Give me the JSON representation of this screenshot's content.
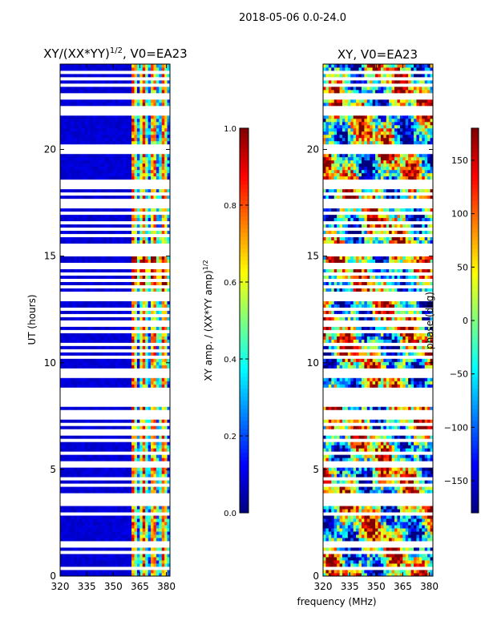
{
  "suptitle": "2018-05-06 0.0-24.0",
  "colors": {
    "jet": [
      "#00007f",
      "#0000ff",
      "#007fff",
      "#00ffff",
      "#7fff7f",
      "#ffff00",
      "#ff7f00",
      "#ff0000",
      "#7f0000"
    ],
    "gap": "#ffffff",
    "axis": "#000000"
  },
  "chart_data": [
    {
      "type": "heatmap",
      "title_main": "XY/(XX*YY)",
      "title_sup": "1/2",
      "title_rest": ", V0=EA23",
      "xlabel": "",
      "ylabel": "UT (hours)",
      "xlim": [
        320,
        382
      ],
      "ylim": [
        0,
        24
      ],
      "xticks": [
        320,
        335,
        350,
        365,
        380
      ],
      "yticks": [
        0,
        5,
        10,
        15,
        20
      ],
      "colorbar": {
        "label_main": "XY amp. / (XX*YY amp)",
        "label_sup": "1/2",
        "range": [
          0,
          1
        ],
        "ticks": [
          "0.0",
          "0.2",
          "0.4",
          "0.6",
          "0.8",
          "1.0"
        ]
      },
      "description": "Normalized XY amplitude; low (~0.05) below ~360 MHz, high (~0.3-0.9) in bands 360-382 MHz",
      "active_band_mhz": [
        360,
        382
      ]
    },
    {
      "type": "heatmap",
      "title": "XY, V0=EA23",
      "xlabel": "frequency (MHz)",
      "ylabel": "",
      "xlim": [
        320,
        382
      ],
      "ylim": [
        0,
        24
      ],
      "xticks": [
        320,
        335,
        350,
        365,
        380
      ],
      "yticks": [
        0,
        5,
        10,
        15,
        20
      ],
      "colorbar": {
        "label": "phase (deg)",
        "range": [
          -180,
          180
        ],
        "ticks": [
          "150",
          "100",
          "50",
          "0",
          "−50",
          "−100",
          "−150"
        ]
      },
      "description": "XY phase in degrees spanning -180 to 180, noisy with streaks"
    }
  ],
  "flagged_hours": [
    0.4,
    1.1,
    1.45,
    1.55,
    2.95,
    3.4,
    3.5,
    3.65,
    3.85,
    4.25,
    4.55,
    4.95,
    5.25,
    5.55,
    5.85,
    6.15,
    6.4,
    6.75,
    7.1,
    7.4,
    7.55,
    7.8,
    7.95,
    8.15,
    8.3,
    8.5,
    8.65,
    8.8,
    9.15,
    9.45,
    9.7,
    10.3,
    10.6,
    10.85,
    11.1,
    11.5,
    11.75,
    12.0,
    12.25,
    12.55,
    13.05,
    13.3,
    13.55,
    13.9,
    14.2,
    14.55,
    15.15,
    15.3,
    15.5,
    16.0,
    16.3,
    16.6,
    17.0,
    17.3,
    17.55,
    17.85,
    18.0,
    18.3,
    18.5,
    19.9,
    20.0,
    20.15,
    21.7,
    21.85,
    21.95,
    22.35,
    22.6,
    23.05,
    23.35,
    23.65
  ]
}
